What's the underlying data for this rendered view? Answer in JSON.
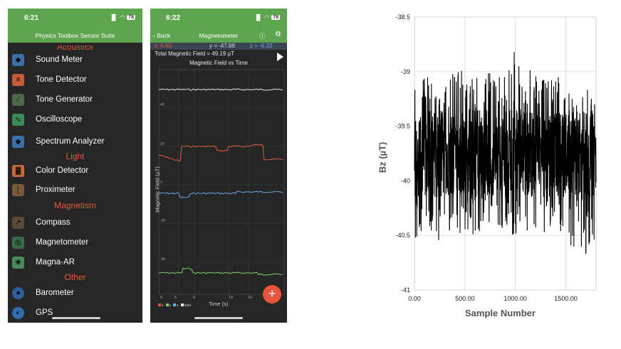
{
  "left_phone": {
    "status_time": "6:21",
    "battery": "78",
    "app_title": "Physics Toolbox Sensor Suite",
    "categories": {
      "acoustics": "Acoustics",
      "light": "Light",
      "magnetism": "Magnetism",
      "other": "Other"
    },
    "items": [
      {
        "label": "Sound Meter",
        "icon": "sound-meter-icon"
      },
      {
        "label": "Tone Detector",
        "icon": "tone-detector-icon"
      },
      {
        "label": "Tone Generator",
        "icon": "tone-generator-icon"
      },
      {
        "label": "Oscilloscope",
        "icon": "oscilloscope-icon"
      },
      {
        "label": "Spectrum Analyzer",
        "icon": "spectrum-analyzer-icon"
      },
      {
        "label": "Color Detector",
        "icon": "color-detector-icon"
      },
      {
        "label": "Proximeter",
        "icon": "proximeter-icon"
      },
      {
        "label": "Compass",
        "icon": "compass-icon"
      },
      {
        "label": "Magnetometer",
        "icon": "magnetometer-icon"
      },
      {
        "label": "Magna-AR",
        "icon": "magna-ar-icon"
      },
      {
        "label": "Barometer",
        "icon": "barometer-icon"
      },
      {
        "label": "GPS",
        "icon": "gps-icon"
      }
    ]
  },
  "right_phone": {
    "status_time": "6:22",
    "battery": "78",
    "back_label": "Back",
    "screen_title": "Magnetometer",
    "readout": {
      "x": "x: 6.83",
      "y": "y = -47.98",
      "z": "z = -6.33"
    },
    "total_field": "Total Magnetic Field = 49.19 µT",
    "chart_title": "Magnetic Field vs Time",
    "y_axis_label": "Magnetic Field (µT)",
    "x_axis_label": "Time (s)",
    "y_ticks": [
      "40",
      "20",
      "0",
      "-20",
      "-40"
    ],
    "x_ticks": [
      "0",
      "5",
      "6",
      "10",
      "15"
    ],
    "legend": [
      "x",
      "y",
      "z",
      "total"
    ],
    "colors": {
      "x": "#e25a3a",
      "y": "#6ba8ea",
      "z": "#7ccf6b",
      "total": "#e8e8e8",
      "accent": "#5ea550",
      "fab": "#e8533c"
    },
    "fab_label": "+"
  },
  "chart_data": {
    "type": "line",
    "xlabel": "Sample Number",
    "ylabel": "Bz (µT)",
    "xlim": [
      0,
      1800
    ],
    "ylim": [
      -41,
      -38.5
    ],
    "x_ticks": [
      "0.00",
      "500.00",
      "1000.00",
      "1500.00"
    ],
    "y_ticks": [
      "-38.5",
      "-39",
      "-39.5",
      "-40",
      "-40.5",
      "-41"
    ],
    "grid": true,
    "series": [
      {
        "values_note_free": true,
        "x": [
          0,
          50,
          100,
          150,
          200,
          250,
          300,
          350,
          400,
          450,
          500,
          550,
          600,
          650,
          700,
          750,
          800,
          850,
          900,
          950,
          1000,
          1050,
          1100,
          1150,
          1200,
          1250,
          1300,
          1350,
          1400,
          1450,
          1500,
          1550,
          1600,
          1650,
          1700,
          1750,
          1800
        ],
        "upper": [
          -38.8,
          -39.05,
          -39.1,
          -39.15,
          -39.2,
          -39.1,
          -39.15,
          -39.1,
          -39.05,
          -39.05,
          -39.1,
          -39.2,
          -39.05,
          -39.1,
          -39.15,
          -39.05,
          -39.15,
          -39.1,
          -39.1,
          -39.0,
          -38.85,
          -39.1,
          -39.15,
          -39.05,
          -39.1,
          -39.15,
          -39.1,
          -39.15,
          -39.1,
          -39.15,
          -39.15,
          -39.25,
          -39.2,
          -39.3,
          -39.2,
          -39.3,
          -39.3
        ],
        "lower": [
          -40.5,
          -40.4,
          -40.45,
          -40.4,
          -40.45,
          -40.5,
          -40.4,
          -40.45,
          -40.3,
          -40.45,
          -40.4,
          -40.35,
          -40.45,
          -40.4,
          -40.35,
          -40.4,
          -40.35,
          -40.4,
          -40.3,
          -40.4,
          -40.45,
          -40.35,
          -40.45,
          -40.3,
          -40.35,
          -40.4,
          -40.45,
          -40.4,
          -40.4,
          -40.45,
          -40.5,
          -40.6,
          -40.55,
          -40.7,
          -40.6,
          -40.55,
          -40.5
        ]
      }
    ]
  }
}
